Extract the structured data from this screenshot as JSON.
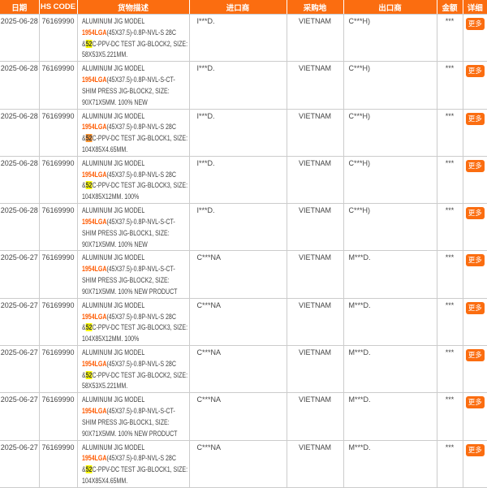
{
  "columns": [
    {
      "label": "日期"
    },
    {
      "label": "HS CODE"
    },
    {
      "label": "货物描述"
    },
    {
      "label": "进口商"
    },
    {
      "label": "采购地"
    },
    {
      "label": "出口商"
    },
    {
      "label": "金额"
    },
    {
      "label": "详细"
    }
  ],
  "ui": {
    "detail_button_label": "更多",
    "amount_masked": "***"
  },
  "colors": {
    "header_bg": "#fb6d10",
    "header_text": "#ffffff",
    "body_text": "#444444",
    "model_keyword_text": "#ff5a00",
    "search_match_bg": "#ffff00",
    "active_search_match_bg": "#ff9632",
    "grid_border": "#cccccc",
    "more_button_bg": "#fb6d10"
  },
  "rows": [
    {
      "date": "2025-06-28",
      "hs_code": "76169990",
      "description_lines": [
        [
          {
            "t": "ALUMINUM JIG MODEL"
          }
        ],
        [
          {
            "t": "1954LGA",
            "s": "model"
          },
          {
            "t": "(45X37.5)-0.8P-NVL-S 28C"
          }
        ],
        [
          {
            "t": "&"
          },
          {
            "t": "52",
            "s": "match"
          },
          {
            "t": "C-PPV-DC TEST JIG-BLOCK2, SIZE:"
          }
        ],
        [
          {
            "t": "58X53X5.221MM."
          }
        ]
      ],
      "importer": "I***D.",
      "purchase_place": "VIETNAM",
      "exporter": "C***H)",
      "amount": "***"
    },
    {
      "date": "2025-06-28",
      "hs_code": "76169990",
      "description_lines": [
        [
          {
            "t": "ALUMINUM JIG MODEL"
          }
        ],
        [
          {
            "t": "1954LGA",
            "s": "model"
          },
          {
            "t": "(45X37.5)-0.8P-NVL-S-CT-"
          }
        ],
        [
          {
            "t": "SHIM PRESS JIG-BLOCK2, SIZE:"
          }
        ],
        [
          {
            "t": "90X71X5MM. 100% NEW"
          }
        ]
      ],
      "importer": "I***D.",
      "purchase_place": "VIETNAM",
      "exporter": "C***H)",
      "amount": "***"
    },
    {
      "date": "2025-06-28",
      "hs_code": "76169990",
      "description_lines": [
        [
          {
            "t": "ALUMINUM JIG MODEL"
          }
        ],
        [
          {
            "t": "1954LGA",
            "s": "model"
          },
          {
            "t": "(45X37.5)-0.8P-NVL-S 28C"
          }
        ],
        [
          {
            "t": "&"
          },
          {
            "t": "52",
            "s": "active"
          },
          {
            "t": "C-PPV-DC TEST JIG-BLOCK1, SIZE:"
          }
        ],
        [
          {
            "t": "104X85X4.65MM."
          }
        ]
      ],
      "importer": "I***D.",
      "purchase_place": "VIETNAM",
      "exporter": "C***H)",
      "amount": "***"
    },
    {
      "date": "2025-06-28",
      "hs_code": "76169990",
      "description_lines": [
        [
          {
            "t": "ALUMINUM JIG MODEL"
          }
        ],
        [
          {
            "t": "1954LGA",
            "s": "model"
          },
          {
            "t": "(45X37.5)-0.8P-NVL-S 28C"
          }
        ],
        [
          {
            "t": "&"
          },
          {
            "t": "52",
            "s": "match"
          },
          {
            "t": "C-PPV-DC TEST JIG-BLOCK3, SIZE:"
          }
        ],
        [
          {
            "t": "104X85X12MM. 100%"
          }
        ]
      ],
      "importer": "I***D.",
      "purchase_place": "VIETNAM",
      "exporter": "C***H)",
      "amount": "***"
    },
    {
      "date": "2025-06-28",
      "hs_code": "76169990",
      "description_lines": [
        [
          {
            "t": "ALUMINUM JIG MODEL"
          }
        ],
        [
          {
            "t": "1954LGA",
            "s": "model"
          },
          {
            "t": "(45X37.5)-0.8P-NVL-S-CT-"
          }
        ],
        [
          {
            "t": "SHIM PRESS JIG-BLOCK1, SIZE:"
          }
        ],
        [
          {
            "t": "90X71X5MM. 100% NEW"
          }
        ]
      ],
      "importer": "I***D.",
      "purchase_place": "VIETNAM",
      "exporter": "C***H)",
      "amount": "***"
    },
    {
      "date": "2025-06-27",
      "hs_code": "76169990",
      "description_lines": [
        [
          {
            "t": "ALUMINUM JIG MODEL"
          }
        ],
        [
          {
            "t": "1954LGA",
            "s": "model"
          },
          {
            "t": "(45X37.5)-0.8P-NVL-S-CT-"
          }
        ],
        [
          {
            "t": "SHIM PRESS JIG-BLOCK2, SIZE:"
          }
        ],
        [
          {
            "t": "90X71X5MM. 100% NEW PRODUCT"
          }
        ]
      ],
      "importer": "C***NA",
      "purchase_place": "VIETNAM",
      "exporter": "M***D.",
      "amount": "***"
    },
    {
      "date": "2025-06-27",
      "hs_code": "76169990",
      "description_lines": [
        [
          {
            "t": "ALUMINUM JIG MODEL"
          }
        ],
        [
          {
            "t": "1954LGA",
            "s": "model"
          },
          {
            "t": "(45X37.5)-0.8P-NVL-S 28C"
          }
        ],
        [
          {
            "t": "&"
          },
          {
            "t": "52",
            "s": "match"
          },
          {
            "t": "C-PPV-DC TEST JIG-BLOCK3, SIZE:"
          }
        ],
        [
          {
            "t": "104X85X12MM. 100%"
          }
        ]
      ],
      "importer": "C***NA",
      "purchase_place": "VIETNAM",
      "exporter": "M***D.",
      "amount": "***"
    },
    {
      "date": "2025-06-27",
      "hs_code": "76169990",
      "description_lines": [
        [
          {
            "t": "ALUMINUM JIG MODEL"
          }
        ],
        [
          {
            "t": "1954LGA",
            "s": "model"
          },
          {
            "t": "(45X37.5)-0.8P-NVL-S 28C"
          }
        ],
        [
          {
            "t": "&"
          },
          {
            "t": "52",
            "s": "match"
          },
          {
            "t": "C-PPV-DC TEST JIG-BLOCK2, SIZE:"
          }
        ],
        [
          {
            "t": "58X53X5.221MM."
          }
        ]
      ],
      "importer": "C***NA",
      "purchase_place": "VIETNAM",
      "exporter": "M***D.",
      "amount": "***"
    },
    {
      "date": "2025-06-27",
      "hs_code": "76169990",
      "description_lines": [
        [
          {
            "t": "ALUMINUM JIG MODEL"
          }
        ],
        [
          {
            "t": "1954LGA",
            "s": "model"
          },
          {
            "t": "(45X37.5)-0.8P-NVL-S-CT-"
          }
        ],
        [
          {
            "t": "SHIM PRESS JIG-BLOCK1, SIZE:"
          }
        ],
        [
          {
            "t": "90X71X5MM. 100% NEW PRODUCT"
          }
        ]
      ],
      "importer": "C***NA",
      "purchase_place": "VIETNAM",
      "exporter": "M***D.",
      "amount": "***"
    },
    {
      "date": "2025-06-27",
      "hs_code": "76169990",
      "description_lines": [
        [
          {
            "t": "ALUMINUM JIG MODEL"
          }
        ],
        [
          {
            "t": "1954LGA",
            "s": "model"
          },
          {
            "t": "(45X37.5)-0.8P-NVL-S 28C"
          }
        ],
        [
          {
            "t": "&"
          },
          {
            "t": "52",
            "s": "match"
          },
          {
            "t": "C-PPV-DC TEST JIG-BLOCK1, SIZE:"
          }
        ],
        [
          {
            "t": "104X85X4.65MM."
          }
        ]
      ],
      "importer": "C***NA",
      "purchase_place": "VIETNAM",
      "exporter": "M***D.",
      "amount": "***"
    }
  ]
}
